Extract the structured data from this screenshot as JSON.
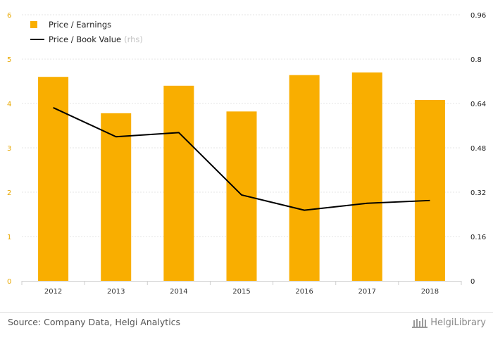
{
  "chart_data": {
    "type": "bar+line",
    "categories": [
      "2012",
      "2013",
      "2014",
      "2015",
      "2016",
      "2017",
      "2018"
    ],
    "series": [
      {
        "name": "Price / Earnings",
        "type": "bar",
        "axis": "left",
        "color": "#f9ae00",
        "values": [
          4.6,
          3.78,
          4.4,
          3.82,
          4.64,
          4.7,
          4.08
        ]
      },
      {
        "name": "Price / Book Value",
        "name_suffix": "(rhs)",
        "type": "line",
        "axis": "right",
        "color": "#000000",
        "values": [
          0.625,
          0.52,
          0.535,
          0.31,
          0.255,
          0.28,
          0.29
        ]
      }
    ],
    "left_axis": {
      "ylim": [
        0,
        6
      ],
      "ticks": [
        "0",
        "1",
        "2",
        "3",
        "4",
        "5",
        "6"
      ]
    },
    "right_axis": {
      "ylim": [
        0,
        0.96
      ],
      "ticks": [
        "0",
        "0.16",
        "0.32",
        "0.48",
        "0.64",
        "0.8",
        "0.96"
      ]
    },
    "grid": true,
    "legend_position": "top-left"
  },
  "footer": {
    "source": "Source: Company Data, Helgi Analytics",
    "brand": "HelgiLibrary"
  }
}
